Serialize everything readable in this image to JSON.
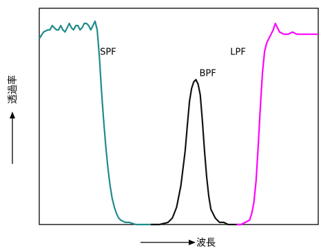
{
  "chart_data": {
    "type": "line",
    "title": "",
    "xlabel": "波長",
    "ylabel": "透過率",
    "grid": false,
    "legend": "none",
    "axes_ticks": false,
    "series": [
      {
        "name": "SPF",
        "color": "#1f8a8a",
        "x": [
          0,
          2,
          4,
          5,
          6,
          7,
          8,
          9,
          10,
          11,
          12,
          13,
          14,
          15,
          16,
          17,
          18,
          19,
          20,
          21,
          22,
          23,
          24,
          25,
          26,
          27,
          28,
          29,
          30,
          31,
          32,
          33,
          34,
          35,
          36,
          37,
          38,
          40,
          42,
          45,
          48,
          50,
          52,
          55
        ],
        "y": [
          0.86,
          0.89,
          0.9,
          0.9,
          0.92,
          0.91,
          0.9,
          0.9,
          0.92,
          0.9,
          0.89,
          0.91,
          0.93,
          0.91,
          0.9,
          0.92,
          0.92,
          0.9,
          0.91,
          0.93,
          0.93,
          0.92,
          0.9,
          0.92,
          0.94,
          0.9,
          0.78,
          0.62,
          0.48,
          0.36,
          0.26,
          0.18,
          0.12,
          0.08,
          0.05,
          0.03,
          0.02,
          0.01,
          0.01,
          0.0,
          0.0,
          0.0,
          0.0,
          0.0
        ]
      },
      {
        "name": "BPF",
        "color": "#111111",
        "x": [
          52,
          56,
          60,
          62,
          64,
          66,
          68,
          69,
          70,
          71,
          72,
          73,
          74,
          75,
          76,
          77,
          78,
          79,
          80,
          82,
          84,
          86,
          88,
          90,
          92,
          94
        ],
        "y": [
          0.0,
          0.0,
          0.01,
          0.03,
          0.08,
          0.18,
          0.34,
          0.46,
          0.57,
          0.63,
          0.66,
          0.67,
          0.65,
          0.6,
          0.48,
          0.34,
          0.22,
          0.13,
          0.07,
          0.03,
          0.01,
          0.01,
          0.0,
          0.0,
          0.0,
          0.0
        ]
      },
      {
        "name": "LPF",
        "color": "#ff00ff",
        "x": [
          92,
          94,
          96,
          98,
          99,
          100,
          101,
          102,
          103,
          104,
          105,
          106,
          107,
          108,
          109,
          110,
          111,
          112,
          114,
          116,
          118,
          120,
          122,
          124,
          126,
          128,
          130
        ],
        "y": [
          0.0,
          0.0,
          0.01,
          0.02,
          0.05,
          0.1,
          0.2,
          0.36,
          0.54,
          0.7,
          0.8,
          0.84,
          0.86,
          0.88,
          0.9,
          0.93,
          0.91,
          0.89,
          0.88,
          0.88,
          0.89,
          0.88,
          0.88,
          0.88,
          0.88,
          0.88,
          0.88
        ]
      }
    ],
    "annotations": [
      {
        "text": "SPF",
        "at_series": "SPF",
        "x": 27,
        "y": 0.83
      },
      {
        "text": "BPF",
        "at_series": "BPF",
        "x": 74,
        "y": 0.68
      },
      {
        "text": "LPF",
        "at_series": "LPF",
        "x": 89,
        "y": 0.83
      }
    ],
    "xlim": [
      0,
      130
    ],
    "ylim": [
      0,
      1
    ]
  }
}
